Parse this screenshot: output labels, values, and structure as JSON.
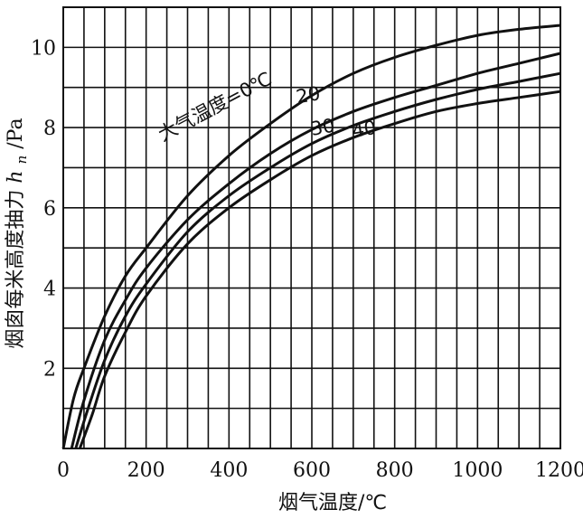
{
  "chart_data": {
    "type": "line",
    "xlabel": "烟气温度/℃",
    "ylabel": "烟囱每米高度抽力 h_n/Pa",
    "ylabel_main": "烟囱每米高度抽力",
    "ylabel_var": "h",
    "ylabel_sub": "n",
    "ylabel_unit": "/Pa",
    "xlim": [
      0,
      1200
    ],
    "ylim": [
      0,
      11
    ],
    "grid": true,
    "x_ticks": [
      0,
      200,
      400,
      600,
      800,
      1000,
      1200
    ],
    "x_tick_labels": [
      "0",
      "200",
      "400",
      "600",
      "800",
      "1000",
      "1200"
    ],
    "y_ticks": [
      2,
      4,
      6,
      8,
      10
    ],
    "y_tick_labels": [
      "2",
      "4",
      "6",
      "8",
      "10"
    ],
    "series": [
      {
        "name": "大气温度=0℃",
        "x": [
          0,
          25,
          50,
          100,
          150,
          200,
          300,
          400,
          500,
          600,
          700,
          800,
          900,
          1000,
          1100,
          1200
        ],
        "y": [
          0,
          1.25,
          2.0,
          3.3,
          4.3,
          5.0,
          6.3,
          7.3,
          8.1,
          8.8,
          9.35,
          9.75,
          10.05,
          10.3,
          10.45,
          10.55
        ]
      },
      {
        "name": "20",
        "x": [
          20,
          50,
          100,
          150,
          200,
          300,
          400,
          500,
          600,
          700,
          800,
          900,
          1000,
          1100,
          1200
        ],
        "y": [
          0,
          1.2,
          2.7,
          3.7,
          4.5,
          5.7,
          6.6,
          7.35,
          7.95,
          8.4,
          8.75,
          9.05,
          9.35,
          9.6,
          9.85
        ]
      },
      {
        "name": "30",
        "x": [
          30,
          60,
          100,
          150,
          200,
          300,
          400,
          500,
          600,
          700,
          800,
          900,
          1000,
          1100,
          1200
        ],
        "y": [
          0,
          1.0,
          2.2,
          3.3,
          4.1,
          5.4,
          6.3,
          7.0,
          7.6,
          8.05,
          8.4,
          8.7,
          8.95,
          9.15,
          9.35
        ]
      },
      {
        "name": "40",
        "x": [
          40,
          70,
          100,
          150,
          200,
          300,
          400,
          500,
          600,
          700,
          800,
          900,
          1000,
          1100,
          1200
        ],
        "y": [
          0,
          0.85,
          1.8,
          2.9,
          3.8,
          5.1,
          6.0,
          6.7,
          7.3,
          7.75,
          8.1,
          8.4,
          8.6,
          8.75,
          8.9
        ]
      }
    ]
  }
}
